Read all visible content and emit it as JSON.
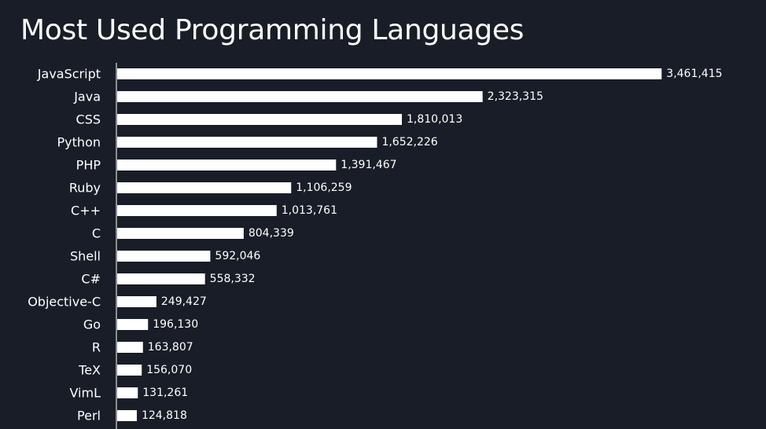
{
  "chart_data": {
    "type": "bar",
    "orientation": "horizontal",
    "title": "Most Used Programming Languages",
    "xlabel": "",
    "ylabel": "",
    "grid": false,
    "xlim": [
      0,
      3900000
    ],
    "categories": [
      "JavaScript",
      "Java",
      "CSS",
      "Python",
      "PHP",
      "Ruby",
      "C++",
      "C",
      "Shell",
      "C#",
      "Objective-C",
      "Go",
      "R",
      "TeX",
      "VimL",
      "Perl"
    ],
    "values": [
      3461415,
      2323315,
      1810013,
      1652226,
      1391467,
      1106259,
      1013761,
      804339,
      592046,
      558332,
      249427,
      196130,
      163807,
      156070,
      131261,
      124818
    ],
    "value_labels": [
      "3,461,415",
      "2,323,315",
      "1,810,013",
      "1,652,226",
      "1,391,467",
      "1,106,259",
      "1,013,761",
      "804,339",
      "592,046",
      "558,332",
      "249,427",
      "196,130",
      "163,807",
      "156,070",
      "131,261",
      "124,818"
    ]
  },
  "colors": {
    "background": "#191d27",
    "bar": "#ffffff",
    "text": "#ffffff",
    "axis": "#ffffff"
  }
}
